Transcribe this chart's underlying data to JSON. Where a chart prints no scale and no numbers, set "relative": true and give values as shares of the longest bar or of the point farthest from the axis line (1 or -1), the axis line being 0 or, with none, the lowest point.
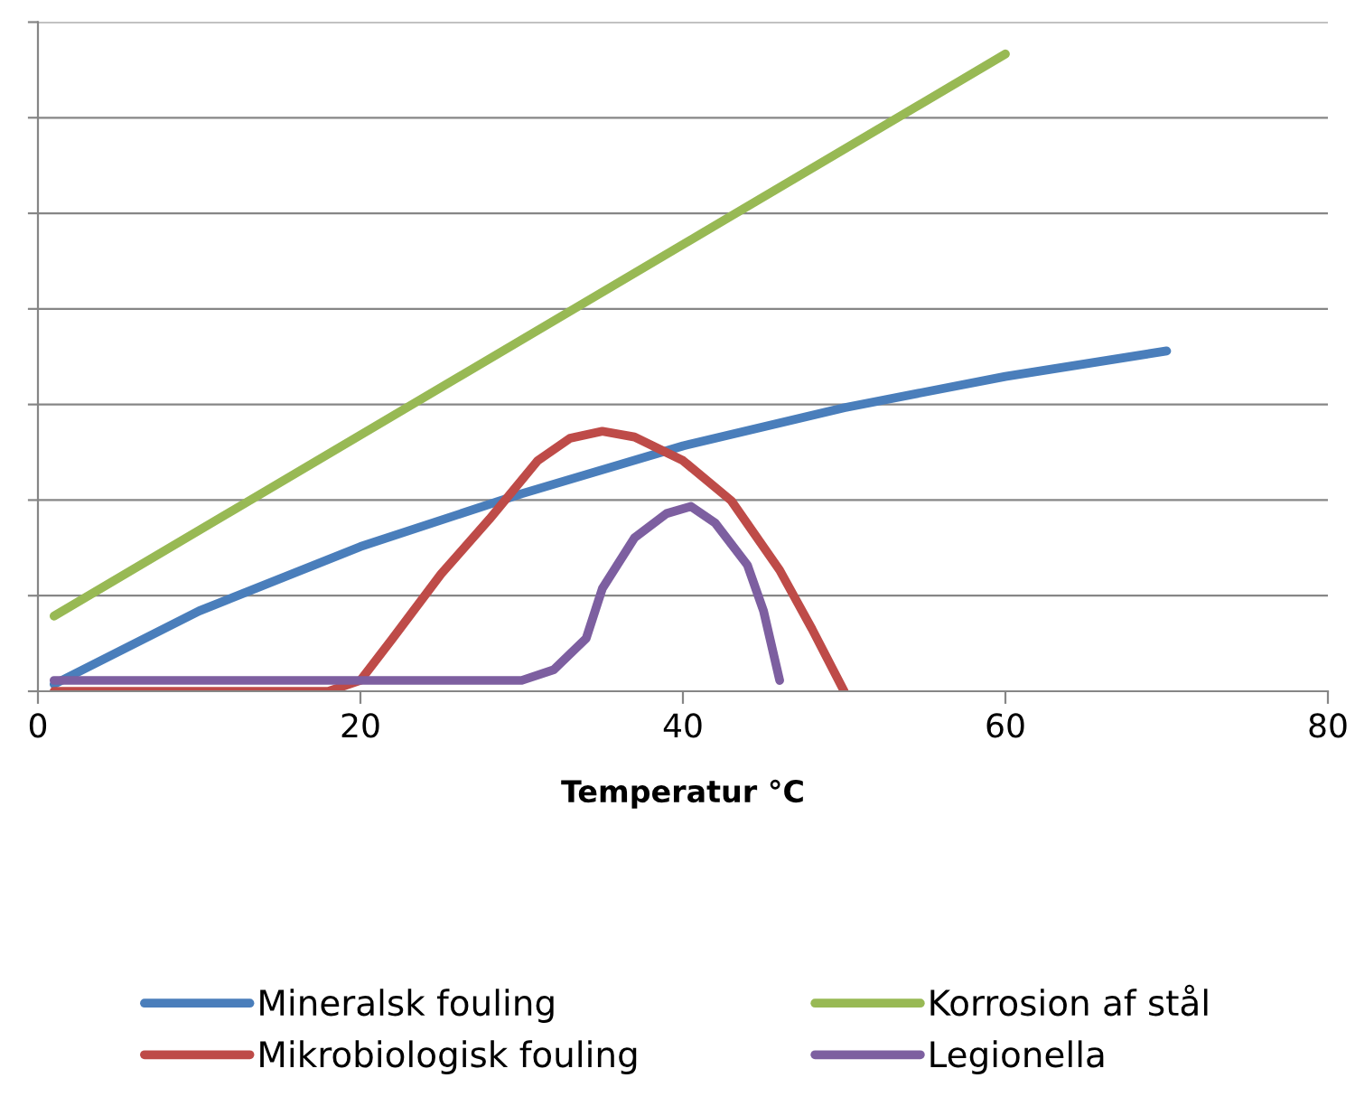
{
  "chart_data": {
    "type": "line",
    "relative": true,
    "xlabel": "Temperatur °C",
    "xlim": [
      0,
      80
    ],
    "xticks": [
      0,
      20,
      40,
      60,
      80
    ],
    "grid": "y",
    "legend": "bottom",
    "marker": "none",
    "line_style": "solid",
    "series": [
      {
        "name": "Mineralsk fouling",
        "color": "#4a7ebb",
        "x": [
          1,
          10,
          20,
          30,
          40,
          50,
          60,
          70
        ],
        "values": [
          0.011,
          0.126,
          0.227,
          0.31,
          0.385,
          0.445,
          0.494,
          0.534
        ]
      },
      {
        "name": "Mikrobiologisk fouling",
        "color": "#be4b48",
        "x": [
          1,
          10,
          18,
          20,
          22,
          25,
          28,
          31,
          33,
          35,
          37,
          40,
          43,
          46,
          48,
          50
        ],
        "values": [
          0,
          0,
          0,
          0.017,
          0.083,
          0.184,
          0.27,
          0.362,
          0.397,
          0.408,
          0.399,
          0.362,
          0.299,
          0.19,
          0.098,
          0
        ]
      },
      {
        "name": "Korrosion af stål",
        "color": "#98b954",
        "x": [
          1,
          60
        ],
        "values": [
          0.118,
          1
        ]
      },
      {
        "name": "Legionella",
        "color": "#7d5fa0",
        "x": [
          1,
          10,
          20,
          30,
          32,
          34,
          35,
          37,
          39,
          40.5,
          42,
          44,
          45,
          46
        ],
        "values": [
          0.017,
          0.017,
          0.017,
          0.017,
          0.034,
          0.083,
          0.161,
          0.241,
          0.279,
          0.29,
          0.264,
          0.198,
          0.126,
          0.017
        ]
      }
    ]
  }
}
